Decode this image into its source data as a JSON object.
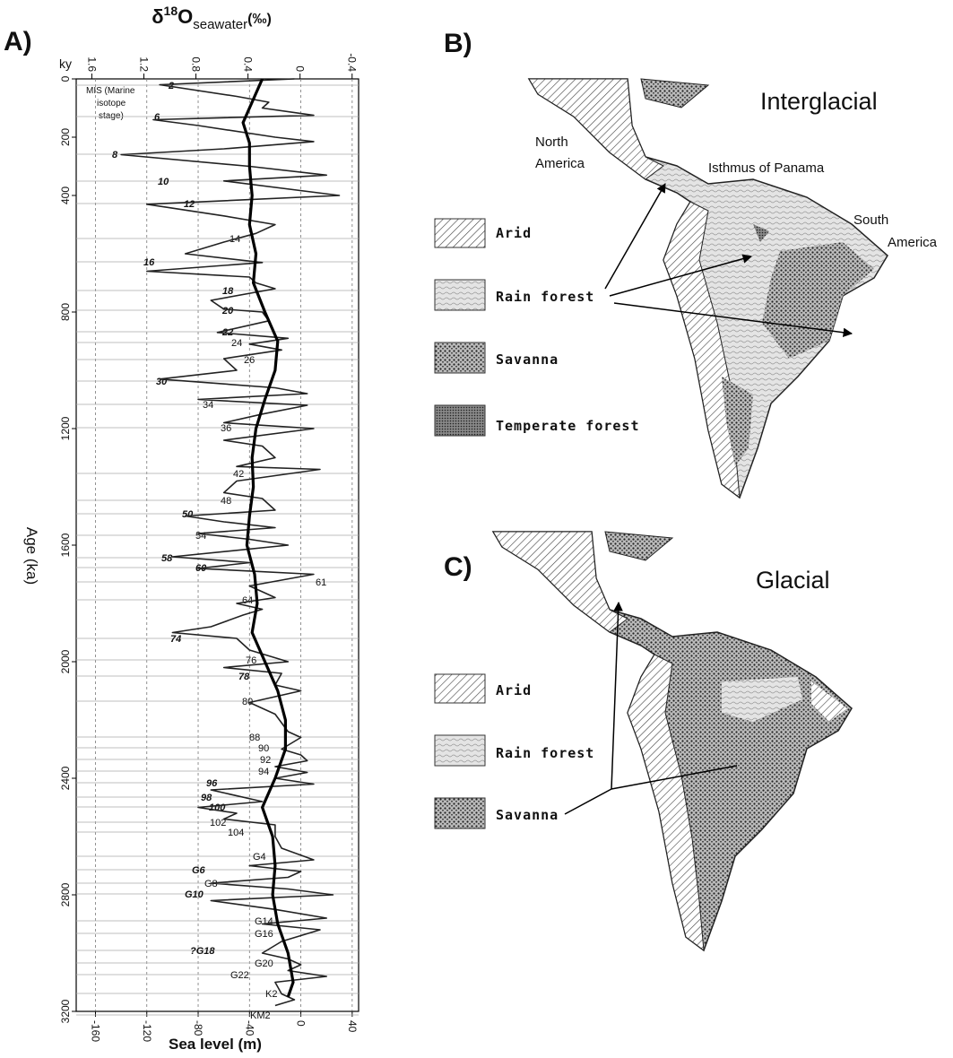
{
  "chart_data": {
    "type": "line",
    "orientation": "vertical",
    "panel_label": "A)",
    "x2label": {
      "base": "δ",
      "sup": "18",
      "main": "O",
      "sub": "seawater",
      "unit": "(‰)"
    },
    "xlabel": "Sea level (m)",
    "ylabel": "Age (ka)",
    "yunit": "ky",
    "xlim": [
      -175,
      45
    ],
    "xticks": [
      -160,
      -120,
      -80,
      -40,
      0,
      40
    ],
    "x2lim": [
      1.72,
      -0.45
    ],
    "x2ticks": [
      1.6,
      1.2,
      0.8,
      0.4,
      0,
      -0.4
    ],
    "ylim": [
      0,
      3200
    ],
    "yticks": [
      0,
      200,
      400,
      800,
      1200,
      1600,
      2000,
      2400,
      2800,
      3200
    ],
    "grid": true,
    "series": [
      {
        "color": "#222",
        "width": 1.6,
        "x": [
          0,
          20,
          60,
          80,
          100,
          125,
          140,
          160,
          200,
          215,
          240,
          260,
          300,
          330,
          350,
          400,
          430,
          470,
          500,
          530,
          560,
          600,
          630,
          660,
          680,
          700,
          720,
          760,
          790,
          800,
          830,
          870,
          890,
          910,
          930,
          960,
          1000,
          1030,
          1060,
          1080,
          1100,
          1120,
          1150,
          1180,
          1200,
          1240,
          1260,
          1300,
          1330,
          1340,
          1380,
          1420,
          1440,
          1480,
          1500,
          1520,
          1540,
          1560,
          1580,
          1600,
          1640,
          1660,
          1680,
          1700,
          1740,
          1780,
          1800,
          1820,
          1840,
          1880,
          1900,
          1920,
          1960,
          2000,
          2020,
          2040,
          2080,
          2100,
          2140,
          2180,
          2240,
          2260,
          2300,
          2320,
          2340,
          2360,
          2380,
          2400,
          2420,
          2440,
          2480,
          2500,
          2520,
          2540,
          2560,
          2600,
          2640,
          2680,
          2700,
          2720,
          2740,
          2760,
          2780,
          2800,
          2820,
          2850,
          2880,
          2900,
          2920,
          2960,
          3000,
          3020,
          3040,
          3060,
          3080,
          3100,
          3140,
          3160,
          3180
        ],
        "values": [
          -5,
          -110,
          -50,
          -25,
          -30,
          10,
          -115,
          -80,
          -20,
          10,
          -60,
          -140,
          -40,
          20,
          -60,
          30,
          -120,
          -60,
          -20,
          -35,
          -60,
          -90,
          -30,
          -120,
          -40,
          -35,
          -20,
          -70,
          -60,
          -30,
          -25,
          -65,
          -10,
          -40,
          -15,
          -60,
          -50,
          -110,
          -20,
          5,
          -80,
          5,
          -30,
          -60,
          10,
          -60,
          -30,
          -20,
          -50,
          15,
          -50,
          -60,
          -30,
          -20,
          -90,
          -60,
          -20,
          -80,
          -40,
          -10,
          -100,
          -40,
          -80,
          10,
          -40,
          -20,
          -50,
          -30,
          -45,
          -70,
          -100,
          -50,
          -40,
          -10,
          -60,
          -15,
          -20,
          0,
          -40,
          -20,
          -10,
          0,
          -15,
          0,
          5,
          -20,
          5,
          -20,
          10,
          -70,
          -30,
          -80,
          -50,
          -60,
          -20,
          -20,
          -15,
          10,
          -40,
          0,
          -10,
          -70,
          -10,
          25,
          -70,
          -20,
          20,
          -30,
          15,
          -15,
          -30,
          -10,
          0,
          -10,
          20,
          -20,
          -15,
          -5,
          -20
        ]
      },
      {
        "color": "#000",
        "width": 3.2,
        "x": [
          0,
          150,
          220,
          300,
          400,
          500,
          600,
          700,
          800,
          900,
          1000,
          1100,
          1200,
          1300,
          1400,
          1500,
          1600,
          1700,
          1800,
          1900,
          2000,
          2100,
          2200,
          2300,
          2400,
          2500,
          2600,
          2700,
          2800,
          2900,
          3000,
          3100,
          3150
        ],
        "values": [
          -30,
          -45,
          -40,
          -40,
          -38,
          -40,
          -35,
          -37,
          -28,
          -18,
          -20,
          -28,
          -35,
          -38,
          -37,
          -40,
          -42,
          -36,
          -34,
          -38,
          -28,
          -18,
          -12,
          -12,
          -20,
          -30,
          -22,
          -20,
          -22,
          -18,
          -10,
          -6,
          -10
        ]
      }
    ],
    "mis_note": [
      "MIS (Marine",
      "isotope",
      "stage)"
    ],
    "annotations": [
      "2",
      "6",
      "8",
      "10",
      "12",
      "14",
      "16",
      "18",
      "20",
      "22",
      "24",
      "26",
      "30",
      "34",
      "36",
      "42",
      "48",
      "50",
      "54",
      "58",
      "60",
      "61",
      "64",
      "74",
      "76",
      "78",
      "80",
      "88",
      "90",
      "92",
      "94",
      "96",
      "98",
      "100",
      "102",
      "104",
      "G4",
      "G6",
      "G8",
      "G10",
      "G14",
      "G16",
      "?G18",
      "G20",
      "G22",
      "K2",
      "KM2"
    ]
  },
  "map_b": {
    "label": "B)",
    "title": "Interglacial",
    "places": [
      [
        "North",
        "America"
      ],
      [
        "Isthmus of Panama"
      ],
      [
        "South",
        "America"
      ]
    ],
    "legend": [
      "Arid",
      "Rain forest",
      "Savanna",
      "Temperate forest"
    ]
  },
  "map_c": {
    "label": "C)",
    "title": "Glacial",
    "legend": [
      "Arid",
      "Rain forest",
      "Savanna"
    ]
  }
}
